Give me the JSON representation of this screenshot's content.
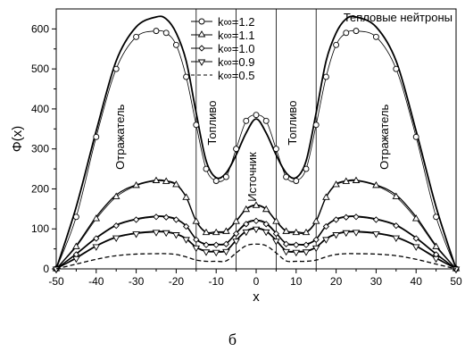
{
  "chart_data": {
    "type": "line",
    "xlabel": "x",
    "ylabel": "Φ(x)",
    "xlim": [
      -50,
      50
    ],
    "ylim": [
      0,
      650
    ],
    "xticks": [
      -50,
      -40,
      -30,
      -20,
      -10,
      0,
      10,
      20,
      30,
      40,
      50
    ],
    "yticks": [
      0,
      100,
      200,
      300,
      400,
      500,
      600
    ],
    "grid": false,
    "legend_position": "top-center",
    "top_right_label": "Тепловые нейтроны",
    "zone_boundaries": [
      -15,
      -5,
      5,
      15
    ],
    "zone_labels": [
      {
        "text": "Отражатель",
        "x": -33,
        "y": 330
      },
      {
        "text": "Топливо",
        "x": -10,
        "y": 365
      },
      {
        "text": "Источник",
        "x": 0,
        "y": 230
      },
      {
        "text": "Топливо",
        "x": 10,
        "y": 365
      },
      {
        "text": "Отражатель",
        "x": 33,
        "y": 330
      }
    ],
    "caption": "б",
    "x": [
      -50,
      -45,
      -40,
      -35,
      -30,
      -25,
      -22.5,
      -20,
      -17.5,
      -15,
      -12.5,
      -10,
      -7.5,
      -5,
      -2.5,
      0,
      2.5,
      5,
      7.5,
      10,
      12.5,
      15,
      17.5,
      20,
      22.5,
      25,
      30,
      35,
      40,
      45,
      50
    ],
    "series": [
      {
        "name": "k∞=1.2",
        "marker": "circle",
        "values": [
          0,
          155,
          345,
          520,
          605,
          630,
          625,
          590,
          520,
          390,
          270,
          228,
          240,
          285,
          340,
          375,
          340,
          285,
          240,
          228,
          270,
          390,
          520,
          590,
          625,
          630,
          605,
          520,
          345,
          155,
          0
        ],
        "markers": [
          0,
          130,
          330,
          500,
          580,
          595,
          590,
          560,
          480,
          360,
          250,
          220,
          230,
          300,
          370,
          385,
          370,
          300,
          230,
          220,
          250,
          360,
          480,
          560,
          590,
          595,
          580,
          500,
          330,
          130,
          0
        ]
      },
      {
        "name": "k∞=1.1",
        "marker": "triangle-up",
        "values": [
          0,
          58,
          130,
          185,
          210,
          222,
          220,
          212,
          180,
          120,
          92,
          93,
          95,
          120,
          150,
          160,
          150,
          120,
          95,
          93,
          92,
          120,
          180,
          212,
          220,
          222,
          210,
          185,
          130,
          58,
          0
        ],
        "markers": [
          0,
          55,
          125,
          180,
          208,
          220,
          218,
          210,
          178,
          118,
          90,
          90,
          93,
          118,
          148,
          158,
          148,
          118,
          93,
          90,
          90,
          118,
          178,
          210,
          218,
          220,
          208,
          180,
          125,
          55,
          0
        ]
      },
      {
        "name": "k∞=1.0",
        "marker": "diamond",
        "values": [
          0,
          38,
          78,
          110,
          125,
          132,
          131,
          125,
          108,
          75,
          62,
          62,
          64,
          90,
          115,
          122,
          115,
          90,
          64,
          62,
          62,
          75,
          108,
          125,
          131,
          132,
          125,
          110,
          78,
          38,
          0
        ],
        "markers": [
          0,
          36,
          76,
          108,
          123,
          130,
          129,
          123,
          106,
          73,
          60,
          60,
          62,
          88,
          112,
          120,
          112,
          88,
          62,
          60,
          60,
          73,
          106,
          123,
          129,
          130,
          123,
          108,
          76,
          36,
          0
        ]
      },
      {
        "name": "k∞=0.9",
        "marker": "triangle-down",
        "values": [
          0,
          28,
          58,
          80,
          90,
          94,
          93,
          88,
          76,
          55,
          45,
          44,
          46,
          72,
          95,
          102,
          95,
          72,
          46,
          44,
          45,
          55,
          76,
          88,
          93,
          94,
          90,
          80,
          58,
          28,
          0
        ],
        "markers": [
          0,
          26,
          56,
          78,
          88,
          92,
          91,
          86,
          74,
          53,
          43,
          42,
          44,
          70,
          93,
          100,
          93,
          70,
          44,
          42,
          43,
          53,
          74,
          86,
          91,
          92,
          88,
          78,
          56,
          26,
          0
        ]
      },
      {
        "name": "k∞=0.5",
        "marker": "none",
        "dash": true,
        "values": [
          0,
          12,
          24,
          33,
          37,
          38,
          38,
          36,
          30,
          22,
          19,
          19,
          20,
          40,
          58,
          62,
          58,
          40,
          20,
          19,
          19,
          22,
          30,
          36,
          38,
          38,
          37,
          33,
          24,
          12,
          0
        ]
      }
    ]
  }
}
